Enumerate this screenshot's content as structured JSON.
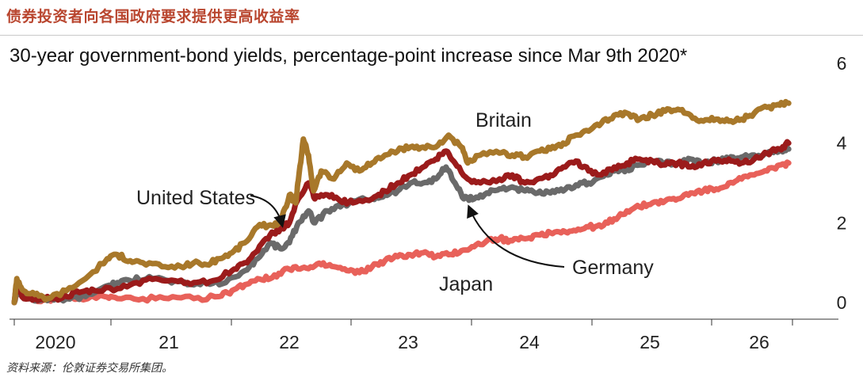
{
  "header": {
    "title": "债券投资者向各国政府要求提供更高收益率"
  },
  "source": "资料来源：伦敦证券交易所集团。",
  "chart_data": {
    "type": "line",
    "title": "30-year government-bond yields, percentage-point increase since Mar 9th 2020*",
    "xlabel": "",
    "ylabel": "",
    "x_ticks": [
      "2020",
      "21",
      "22",
      "23",
      "24",
      "25",
      "26"
    ],
    "x_range": [
      2020.19,
      2026.3
    ],
    "y_ticks": [
      0,
      2,
      4,
      6
    ],
    "ylim": [
      0,
      6
    ],
    "y_axis_side": "right",
    "grid": false,
    "series": [
      {
        "name": "Britain",
        "color": "#a8782a",
        "points": [
          [
            2020.19,
            0.0
          ],
          [
            2020.21,
            0.6
          ],
          [
            2020.26,
            0.3
          ],
          [
            2020.35,
            0.2
          ],
          [
            2020.45,
            0.1
          ],
          [
            2020.6,
            0.3
          ],
          [
            2020.75,
            0.6
          ],
          [
            2020.92,
            1.1
          ],
          [
            2021.0,
            1.2
          ],
          [
            2021.1,
            1.05
          ],
          [
            2021.2,
            1.0
          ],
          [
            2021.35,
            0.9
          ],
          [
            2021.5,
            0.9
          ],
          [
            2021.6,
            1.0
          ],
          [
            2021.7,
            0.95
          ],
          [
            2021.8,
            1.1
          ],
          [
            2021.9,
            1.25
          ],
          [
            2022.0,
            1.5
          ],
          [
            2022.1,
            1.9
          ],
          [
            2022.2,
            1.95
          ],
          [
            2022.28,
            2.0
          ],
          [
            2022.35,
            2.7
          ],
          [
            2022.4,
            2.5
          ],
          [
            2022.42,
            3.05
          ],
          [
            2022.46,
            4.1
          ],
          [
            2022.5,
            3.7
          ],
          [
            2022.54,
            2.8
          ],
          [
            2022.6,
            3.3
          ],
          [
            2022.7,
            3.1
          ],
          [
            2022.8,
            3.5
          ],
          [
            2022.9,
            3.3
          ],
          [
            2023.0,
            3.5
          ],
          [
            2023.1,
            3.7
          ],
          [
            2023.2,
            3.8
          ],
          [
            2023.3,
            3.9
          ],
          [
            2023.4,
            3.9
          ],
          [
            2023.5,
            3.9
          ],
          [
            2023.6,
            4.2
          ],
          [
            2023.7,
            3.9
          ],
          [
            2023.75,
            3.5
          ],
          [
            2023.85,
            3.7
          ],
          [
            2024.0,
            3.75
          ],
          [
            2024.1,
            3.7
          ],
          [
            2024.2,
            3.65
          ],
          [
            2024.3,
            3.8
          ],
          [
            2024.4,
            3.85
          ],
          [
            2024.5,
            4.0
          ],
          [
            2024.6,
            4.2
          ],
          [
            2024.7,
            4.3
          ],
          [
            2024.8,
            4.5
          ],
          [
            2024.9,
            4.7
          ],
          [
            2025.0,
            4.75
          ],
          [
            2025.1,
            4.6
          ],
          [
            2025.2,
            4.7
          ],
          [
            2025.3,
            4.8
          ],
          [
            2025.4,
            4.85
          ],
          [
            2025.5,
            4.7
          ],
          [
            2025.6,
            4.55
          ],
          [
            2025.7,
            4.6
          ],
          [
            2025.8,
            4.55
          ],
          [
            2025.9,
            4.6
          ],
          [
            2026.0,
            4.75
          ],
          [
            2026.1,
            4.9
          ],
          [
            2026.2,
            4.95
          ],
          [
            2026.27,
            5.0
          ]
        ]
      },
      {
        "name": "United States",
        "color": "#9b1b1b",
        "points": [
          [
            2020.19,
            0.0
          ],
          [
            2020.21,
            0.5
          ],
          [
            2020.25,
            0.15
          ],
          [
            2020.35,
            0.1
          ],
          [
            2020.5,
            0.1
          ],
          [
            2020.6,
            0.15
          ],
          [
            2020.7,
            0.25
          ],
          [
            2020.82,
            0.3
          ],
          [
            2021.0,
            0.35
          ],
          [
            2021.15,
            0.5
          ],
          [
            2021.3,
            0.6
          ],
          [
            2021.45,
            0.55
          ],
          [
            2021.6,
            0.5
          ],
          [
            2021.75,
            0.55
          ],
          [
            2021.9,
            0.8
          ],
          [
            2022.0,
            1.0
          ],
          [
            2022.1,
            1.3
          ],
          [
            2022.2,
            1.7
          ],
          [
            2022.28,
            1.85
          ],
          [
            2022.35,
            2.0
          ],
          [
            2022.42,
            2.6
          ],
          [
            2022.5,
            3.0
          ],
          [
            2022.55,
            2.6
          ],
          [
            2022.65,
            2.7
          ],
          [
            2022.75,
            2.55
          ],
          [
            2022.85,
            2.5
          ],
          [
            2023.0,
            2.6
          ],
          [
            2023.1,
            2.8
          ],
          [
            2023.2,
            3.0
          ],
          [
            2023.3,
            3.2
          ],
          [
            2023.4,
            3.4
          ],
          [
            2023.5,
            3.6
          ],
          [
            2023.58,
            3.8
          ],
          [
            2023.65,
            3.5
          ],
          [
            2023.75,
            3.1
          ],
          [
            2023.85,
            3.0
          ],
          [
            2024.0,
            3.1
          ],
          [
            2024.1,
            3.2
          ],
          [
            2024.2,
            3.0
          ],
          [
            2024.3,
            3.1
          ],
          [
            2024.4,
            3.2
          ],
          [
            2024.5,
            3.4
          ],
          [
            2024.6,
            3.55
          ],
          [
            2024.7,
            3.3
          ],
          [
            2024.8,
            3.2
          ],
          [
            2024.9,
            3.4
          ],
          [
            2025.0,
            3.5
          ],
          [
            2025.1,
            3.6
          ],
          [
            2025.2,
            3.55
          ],
          [
            2025.3,
            3.45
          ],
          [
            2025.4,
            3.5
          ],
          [
            2025.5,
            3.4
          ],
          [
            2025.6,
            3.5
          ],
          [
            2025.7,
            3.55
          ],
          [
            2025.8,
            3.6
          ],
          [
            2025.9,
            3.5
          ],
          [
            2026.0,
            3.6
          ],
          [
            2026.1,
            3.75
          ],
          [
            2026.2,
            3.85
          ],
          [
            2026.27,
            4.0
          ]
        ]
      },
      {
        "name": "Germany",
        "color": "#6a6a6a",
        "points": [
          [
            2020.19,
            0.0
          ],
          [
            2020.21,
            0.3
          ],
          [
            2020.3,
            0.1
          ],
          [
            2020.45,
            0.05
          ],
          [
            2020.6,
            0.1
          ],
          [
            2020.75,
            0.15
          ],
          [
            2020.9,
            0.4
          ],
          [
            2021.0,
            0.5
          ],
          [
            2021.1,
            0.55
          ],
          [
            2021.25,
            0.65
          ],
          [
            2021.4,
            0.55
          ],
          [
            2021.55,
            0.45
          ],
          [
            2021.7,
            0.5
          ],
          [
            2021.85,
            0.5
          ],
          [
            2022.0,
            0.8
          ],
          [
            2022.1,
            1.1
          ],
          [
            2022.2,
            1.5
          ],
          [
            2022.28,
            1.35
          ],
          [
            2022.35,
            1.5
          ],
          [
            2022.42,
            2.0
          ],
          [
            2022.5,
            2.3
          ],
          [
            2022.55,
            2.0
          ],
          [
            2022.65,
            2.3
          ],
          [
            2022.75,
            2.4
          ],
          [
            2022.85,
            2.55
          ],
          [
            2023.0,
            2.6
          ],
          [
            2023.1,
            2.7
          ],
          [
            2023.2,
            2.8
          ],
          [
            2023.3,
            3.0
          ],
          [
            2023.4,
            3.0
          ],
          [
            2023.5,
            3.1
          ],
          [
            2023.58,
            3.4
          ],
          [
            2023.65,
            3.0
          ],
          [
            2023.72,
            2.6
          ],
          [
            2023.8,
            2.6
          ],
          [
            2023.9,
            2.75
          ],
          [
            2024.0,
            2.85
          ],
          [
            2024.1,
            2.9
          ],
          [
            2024.2,
            2.8
          ],
          [
            2024.3,
            2.75
          ],
          [
            2024.4,
            2.75
          ],
          [
            2024.5,
            2.8
          ],
          [
            2024.6,
            2.95
          ],
          [
            2024.7,
            3.0
          ],
          [
            2024.8,
            3.15
          ],
          [
            2024.9,
            3.3
          ],
          [
            2025.0,
            3.35
          ],
          [
            2025.1,
            3.45
          ],
          [
            2025.2,
            3.55
          ],
          [
            2025.3,
            3.5
          ],
          [
            2025.4,
            3.5
          ],
          [
            2025.5,
            3.6
          ],
          [
            2025.6,
            3.5
          ],
          [
            2025.7,
            3.55
          ],
          [
            2025.8,
            3.6
          ],
          [
            2025.9,
            3.65
          ],
          [
            2026.0,
            3.7
          ],
          [
            2026.1,
            3.75
          ],
          [
            2026.2,
            3.8
          ],
          [
            2026.27,
            3.85
          ]
        ]
      },
      {
        "name": "Japan",
        "color": "#e8615a",
        "points": [
          [
            2020.19,
            0.0
          ],
          [
            2020.21,
            0.3
          ],
          [
            2020.35,
            0.05
          ],
          [
            2020.5,
            0.1
          ],
          [
            2020.7,
            0.1
          ],
          [
            2020.9,
            0.15
          ],
          [
            2021.0,
            0.1
          ],
          [
            2021.2,
            0.1
          ],
          [
            2021.4,
            0.1
          ],
          [
            2021.6,
            0.1
          ],
          [
            2021.8,
            0.15
          ],
          [
            2021.9,
            0.3
          ],
          [
            2022.0,
            0.45
          ],
          [
            2022.1,
            0.6
          ],
          [
            2022.2,
            0.6
          ],
          [
            2022.3,
            0.8
          ],
          [
            2022.4,
            0.9
          ],
          [
            2022.5,
            0.85
          ],
          [
            2022.6,
            0.95
          ],
          [
            2022.7,
            0.9
          ],
          [
            2022.8,
            0.8
          ],
          [
            2022.9,
            0.75
          ],
          [
            2023.0,
            0.9
          ],
          [
            2023.1,
            1.05
          ],
          [
            2023.2,
            1.15
          ],
          [
            2023.3,
            1.2
          ],
          [
            2023.4,
            1.25
          ],
          [
            2023.5,
            1.15
          ],
          [
            2023.6,
            1.2
          ],
          [
            2023.7,
            1.3
          ],
          [
            2023.8,
            1.4
          ],
          [
            2023.9,
            1.55
          ],
          [
            2024.0,
            1.6
          ],
          [
            2024.1,
            1.55
          ],
          [
            2024.2,
            1.6
          ],
          [
            2024.3,
            1.7
          ],
          [
            2024.4,
            1.75
          ],
          [
            2024.5,
            1.8
          ],
          [
            2024.6,
            1.8
          ],
          [
            2024.7,
            1.9
          ],
          [
            2024.8,
            1.9
          ],
          [
            2024.9,
            2.1
          ],
          [
            2025.0,
            2.3
          ],
          [
            2025.1,
            2.4
          ],
          [
            2025.2,
            2.5
          ],
          [
            2025.3,
            2.55
          ],
          [
            2025.4,
            2.6
          ],
          [
            2025.5,
            2.75
          ],
          [
            2025.6,
            2.8
          ],
          [
            2025.7,
            2.85
          ],
          [
            2025.8,
            3.0
          ],
          [
            2025.9,
            3.1
          ],
          [
            2026.0,
            3.2
          ],
          [
            2026.1,
            3.3
          ],
          [
            2026.2,
            3.45
          ],
          [
            2026.27,
            3.5
          ]
        ]
      }
    ],
    "annotations": [
      {
        "text": "Britain",
        "series": "Britain"
      },
      {
        "text": "United States",
        "series": "United States"
      },
      {
        "text": "Germany",
        "series": "Germany"
      },
      {
        "text": "Japan",
        "series": "Japan"
      }
    ]
  }
}
